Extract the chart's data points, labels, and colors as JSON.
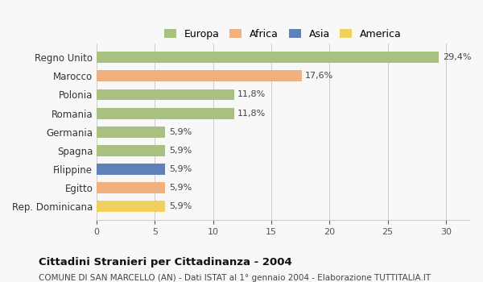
{
  "categories": [
    "Rep. Dominicana",
    "Egitto",
    "Filippine",
    "Spagna",
    "Germania",
    "Romania",
    "Polonia",
    "Marocco",
    "Regno Unito"
  ],
  "values": [
    5.9,
    5.9,
    5.9,
    5.9,
    5.9,
    11.8,
    11.8,
    17.6,
    29.4
  ],
  "labels": [
    "5,9%",
    "5,9%",
    "5,9%",
    "5,9%",
    "5,9%",
    "11,8%",
    "11,8%",
    "17,6%",
    "29,4%"
  ],
  "colors": [
    "#f0d060",
    "#f0b080",
    "#6080b8",
    "#a8c080",
    "#a8c080",
    "#a8c080",
    "#a8c080",
    "#f0b080",
    "#a8c080"
  ],
  "continent": [
    "America",
    "Africa",
    "Asia",
    "Europa",
    "Europa",
    "Europa",
    "Europa",
    "Africa",
    "Europa"
  ],
  "legend": [
    {
      "label": "Europa",
      "color": "#a8c080"
    },
    {
      "label": "Africa",
      "color": "#f0b080"
    },
    {
      "label": "Asia",
      "color": "#6080b8"
    },
    {
      "label": "America",
      "color": "#f0d060"
    }
  ],
  "title": "Cittadini Stranieri per Cittadinanza - 2004",
  "subtitle": "COMUNE DI SAN MARCELLO (AN) - Dati ISTAT al 1° gennaio 2004 - Elaborazione TUTTITALIA.IT",
  "xlim": [
    0,
    32
  ],
  "xticks": [
    0,
    5,
    10,
    15,
    20,
    25,
    30
  ],
  "background_color": "#f8f8f8",
  "grid_color": "#cccccc",
  "bar_height": 0.6
}
